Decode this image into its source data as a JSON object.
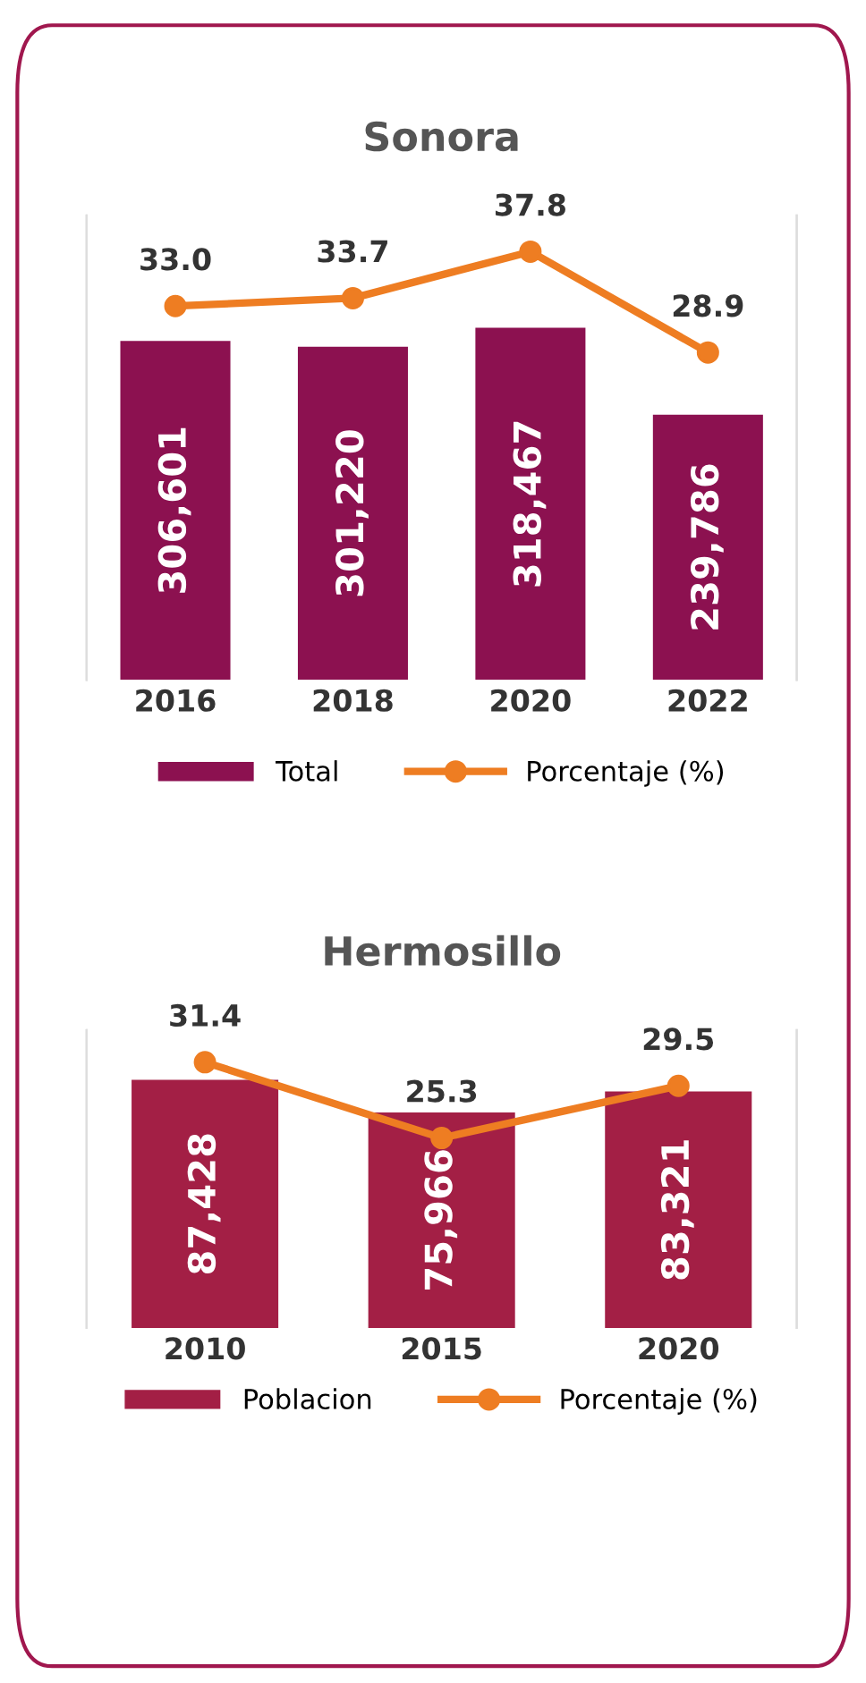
{
  "chart_data": [
    {
      "type": "bar",
      "title": "Sonora",
      "categories": [
        "2016",
        "2018",
        "2020",
        "2022"
      ],
      "ylim": [
        0,
        420000
      ],
      "y2lim": [
        0,
        41
      ],
      "tick_labels": "x",
      "legend": "bottom",
      "marker": "circle",
      "series": [
        {
          "name": "Total",
          "type": "bar",
          "color": "#8c1150",
          "values": [
            306601,
            301220,
            318467,
            239786
          ],
          "value_labels": [
            "306,601",
            "301,220",
            "318,467",
            "239,786"
          ]
        },
        {
          "name": "Porcentaje (%)",
          "type": "line",
          "axis": "y2",
          "color": "#ee7d22",
          "values": [
            33.0,
            33.7,
            37.8,
            28.9
          ],
          "value_labels": [
            "33.0",
            "33.7",
            "37.8",
            "28.9"
          ]
        }
      ]
    },
    {
      "type": "bar",
      "title": "Hermosillo",
      "categories": [
        "2010",
        "2015",
        "2020"
      ],
      "ylim": [
        0,
        105000
      ],
      "y2lim": [
        10,
        34
      ],
      "tick_labels": "x",
      "legend": "bottom",
      "marker": "circle",
      "series": [
        {
          "name": "Poblacion",
          "type": "bar",
          "color": "#a31f45",
          "values": [
            87428,
            75966,
            83321
          ],
          "value_labels": [
            "87,428",
            "75,966",
            "83,321"
          ]
        },
        {
          "name": "Porcentaje (%)",
          "type": "line",
          "axis": "y2",
          "color": "#ee7d22",
          "values": [
            31.4,
            25.3,
            29.5
          ],
          "value_labels": [
            "31.4",
            "25.3",
            "29.5"
          ]
        }
      ]
    }
  ]
}
